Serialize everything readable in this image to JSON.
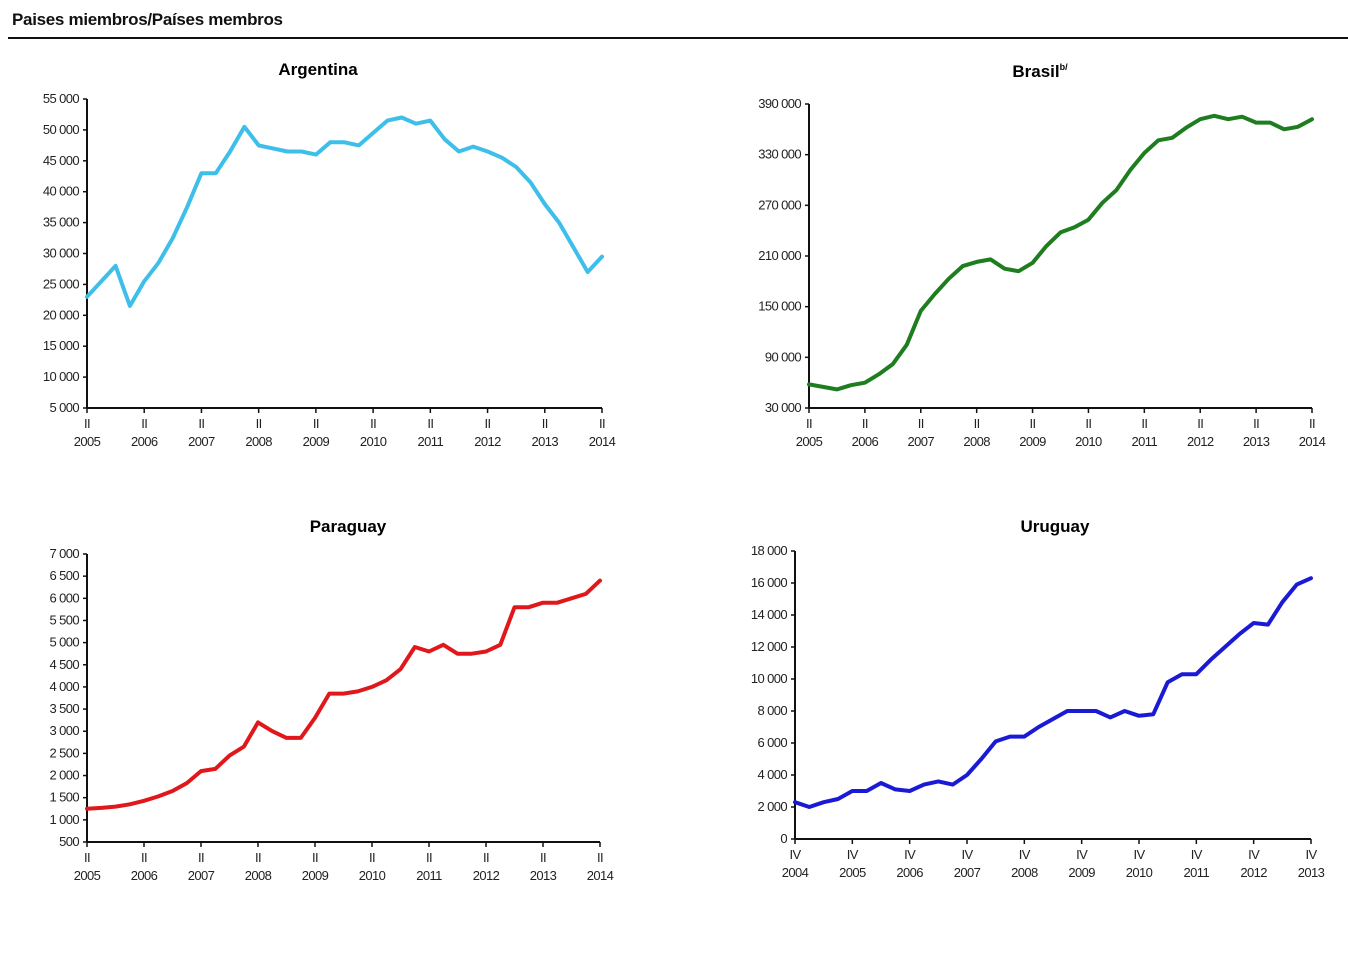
{
  "page": {
    "title": "Paises miembros/Países membros"
  },
  "colors": {
    "argentina": "#3dbfea",
    "brasil": "#1e7d1e",
    "paraguay": "#e0181b",
    "uruguay": "#1a1ad6"
  },
  "chart_data": [
    {
      "id": "argentina",
      "type": "line",
      "title": "Argentina",
      "title_sup": "",
      "series_color": "#3dbfea",
      "ylim": [
        5000,
        55000
      ],
      "yticks": [
        5000,
        10000,
        15000,
        20000,
        25000,
        30000,
        35000,
        40000,
        45000,
        50000,
        55000
      ],
      "ytick_labels": [
        "5 000",
        "10 000",
        "15 000",
        "20 000",
        "25 000",
        "30 000",
        "35 000",
        "40 000",
        "45 000",
        "50 000",
        "55 000"
      ],
      "xlim": [
        0,
        36
      ],
      "xticks": [
        0,
        4,
        8,
        12,
        16,
        20,
        24,
        28,
        32,
        36
      ],
      "xtick_quarter": "II",
      "xtick_years": [
        "2005",
        "2006",
        "2007",
        "2008",
        "2009",
        "2010",
        "2011",
        "2012",
        "2013",
        "2014"
      ],
      "x": [
        0,
        1,
        2,
        3,
        4,
        5,
        6,
        7,
        8,
        9,
        10,
        11,
        12,
        13,
        14,
        15,
        16,
        17,
        18,
        19,
        20,
        21,
        22,
        23,
        24,
        25,
        26,
        27,
        28,
        29,
        30,
        31,
        32,
        33,
        34,
        35,
        36
      ],
      "values": [
        23000,
        25500,
        28000,
        21500,
        25500,
        28500,
        32500,
        37500,
        43000,
        43000,
        46500,
        50500,
        47500,
        47000,
        46500,
        46500,
        46000,
        48000,
        48000,
        47500,
        49500,
        51500,
        52000,
        51000,
        51500,
        48500,
        46500,
        47300,
        46500,
        45500,
        44000,
        41500,
        38000,
        35000,
        31000,
        27000,
        29500
      ]
    },
    {
      "id": "brasil",
      "type": "line",
      "title": "Brasil",
      "title_sup": "b/",
      "series_color": "#1e7d1e",
      "ylim": [
        30000,
        390000
      ],
      "yticks": [
        30000,
        90000,
        150000,
        210000,
        270000,
        330000,
        390000
      ],
      "ytick_labels": [
        "30 000",
        "90 000",
        "150 000",
        "210 000",
        "270 000",
        "330 000",
        "390 000"
      ],
      "xlim": [
        0,
        36
      ],
      "xticks": [
        0,
        4,
        8,
        12,
        16,
        20,
        24,
        28,
        32,
        36
      ],
      "xtick_quarter": "II",
      "xtick_years": [
        "2005",
        "2006",
        "2007",
        "2008",
        "2009",
        "2010",
        "2011",
        "2012",
        "2013",
        "2014"
      ],
      "x": [
        0,
        1,
        2,
        3,
        4,
        5,
        6,
        7,
        8,
        9,
        10,
        11,
        12,
        13,
        14,
        15,
        16,
        17,
        18,
        19,
        20,
        21,
        22,
        23,
        24,
        25,
        26,
        27,
        28,
        29,
        30,
        31,
        32,
        33,
        34,
        35,
        36
      ],
      "values": [
        58000,
        55000,
        52000,
        57000,
        60000,
        70000,
        82000,
        105000,
        145000,
        165000,
        183000,
        198000,
        203000,
        206000,
        195000,
        192000,
        202000,
        222000,
        238000,
        244000,
        253000,
        273000,
        288000,
        312000,
        332000,
        347000,
        350000,
        362000,
        372000,
        376000,
        372000,
        375000,
        368000,
        368000,
        360000,
        363000,
        372000
      ]
    },
    {
      "id": "paraguay",
      "type": "line",
      "title": "Paraguay",
      "title_sup": "",
      "series_color": "#e0181b",
      "ylim": [
        500,
        7000
      ],
      "yticks": [
        500,
        1000,
        1500,
        2000,
        2500,
        3000,
        3500,
        4000,
        4500,
        5000,
        5500,
        6000,
        6500,
        7000
      ],
      "ytick_labels": [
        "500",
        "1 000",
        "1 500",
        "2 000",
        "2 500",
        "3 000",
        "3 500",
        "4 000",
        "4 500",
        "5 000",
        "5 500",
        "6 000",
        "6 500",
        "7 000"
      ],
      "xlim": [
        0,
        36
      ],
      "xticks": [
        0,
        4,
        8,
        12,
        16,
        20,
        24,
        28,
        32,
        36
      ],
      "xtick_quarter": "II",
      "xtick_years": [
        "2005",
        "2006",
        "2007",
        "2008",
        "2009",
        "2010",
        "2011",
        "2012",
        "2013",
        "2014"
      ],
      "x": [
        0,
        1,
        2,
        3,
        4,
        5,
        6,
        7,
        8,
        9,
        10,
        11,
        12,
        13,
        14,
        15,
        16,
        17,
        18,
        19,
        20,
        21,
        22,
        23,
        24,
        25,
        26,
        27,
        28,
        29,
        30,
        31,
        32,
        33,
        34,
        35,
        36
      ],
      "values": [
        1250,
        1270,
        1300,
        1350,
        1430,
        1530,
        1650,
        1830,
        2100,
        2150,
        2450,
        2650,
        3200,
        3000,
        2850,
        2850,
        3300,
        3850,
        3850,
        3900,
        4000,
        4150,
        4400,
        4900,
        4800,
        4950,
        4750,
        4750,
        4800,
        4950,
        5800,
        5800,
        5900,
        5900,
        6000,
        6100,
        6400
      ]
    },
    {
      "id": "uruguay",
      "type": "line",
      "title": "Uruguay",
      "title_sup": "",
      "series_color": "#1a1ad6",
      "ylim": [
        0,
        18000
      ],
      "yticks": [
        0,
        2000,
        4000,
        6000,
        8000,
        10000,
        12000,
        14000,
        16000,
        18000
      ],
      "ytick_labels": [
        "0",
        "2 000",
        "4 000",
        "6 000",
        "8 000",
        "10 000",
        "12 000",
        "14 000",
        "16 000",
        "18 000"
      ],
      "xlim": [
        0,
        36
      ],
      "xticks": [
        0,
        4,
        8,
        12,
        16,
        20,
        24,
        28,
        32,
        36
      ],
      "xtick_quarter": "IV",
      "xtick_years": [
        "2004",
        "2005",
        "2006",
        "2007",
        "2008",
        "2009",
        "2010",
        "2011",
        "2012",
        "2013"
      ],
      "x": [
        0,
        1,
        2,
        3,
        4,
        5,
        6,
        7,
        8,
        9,
        10,
        11,
        12,
        13,
        14,
        15,
        16,
        17,
        18,
        19,
        20,
        21,
        22,
        23,
        24,
        25,
        26,
        27,
        28,
        29,
        30,
        31,
        32,
        33,
        34,
        35,
        36
      ],
      "values": [
        2300,
        2000,
        2300,
        2500,
        3000,
        3000,
        3500,
        3100,
        3000,
        3400,
        3600,
        3400,
        4000,
        5000,
        6100,
        6400,
        6400,
        7000,
        7500,
        8000,
        8000,
        8000,
        7600,
        8000,
        7700,
        7800,
        9800,
        10300,
        10300,
        11200,
        12000,
        12800,
        13500,
        13400,
        14800,
        15900,
        16300
      ]
    }
  ]
}
